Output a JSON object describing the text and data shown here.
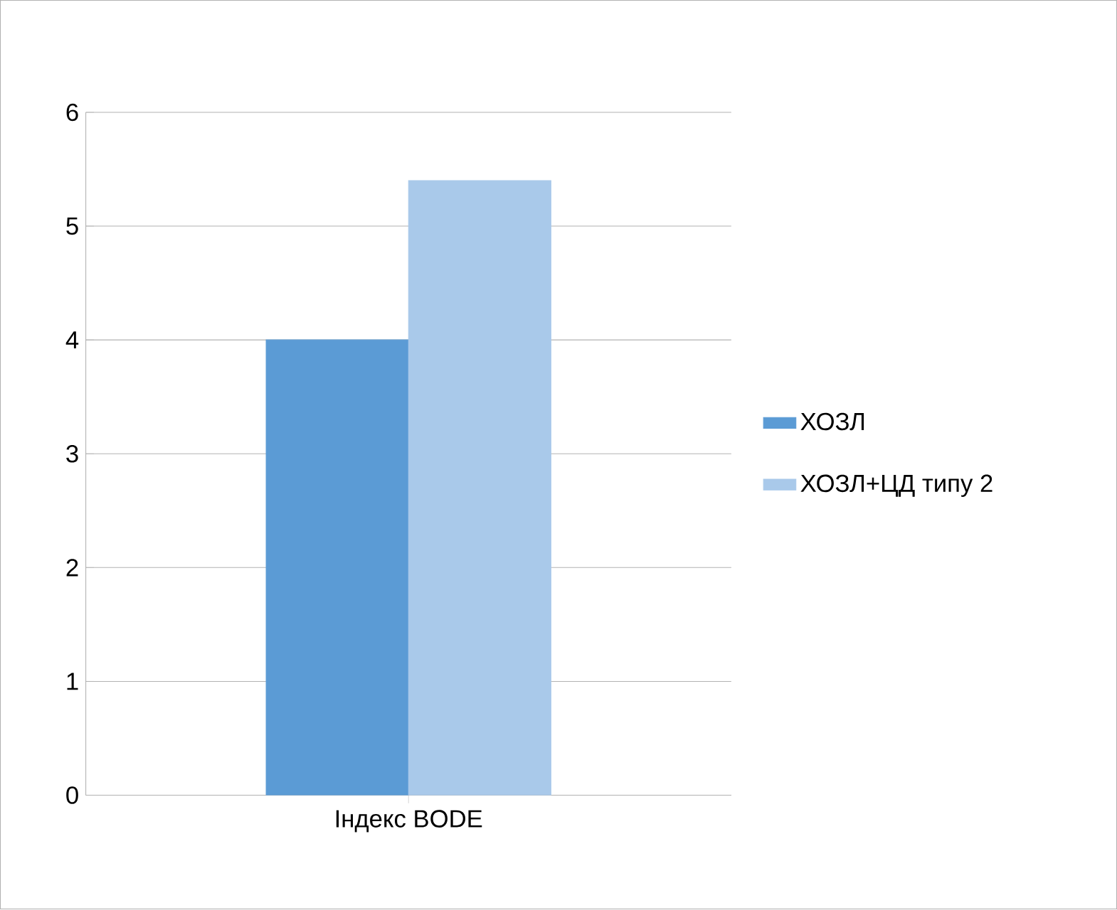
{
  "chart_data": {
    "type": "bar",
    "categories": [
      "Індекс BODE"
    ],
    "series": [
      {
        "name": "ХОЗЛ",
        "color": "#5b9bd5",
        "values": [
          4.0
        ]
      },
      {
        "name": "ХОЗЛ+ЦД типу 2",
        "color": "#a9c9ea",
        "values": [
          5.4
        ]
      }
    ],
    "ylim": [
      0,
      6
    ],
    "yticks": [
      0,
      1,
      2,
      3,
      4,
      5,
      6
    ],
    "grid": "y",
    "legend": "right"
  }
}
